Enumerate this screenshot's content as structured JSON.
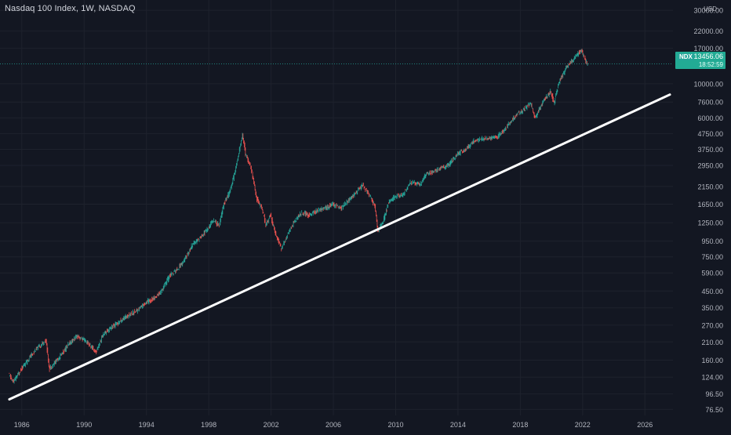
{
  "title": "Nasdaq 100 Index, 1W, NASDAQ",
  "price_tag": {
    "symbol": "NDX",
    "price": "13456.06",
    "countdown": "18:52:59"
  },
  "currency": "USD",
  "colors": {
    "background": "#131722",
    "grid": "#1e222d",
    "axis_text": "#b2b5be",
    "up": "#26a69a",
    "down": "#ef5350",
    "trendline": "#ffffff",
    "price_line": "#26a69a"
  },
  "chart_data": {
    "type": "line",
    "title": "Nasdaq 100 Index, 1W, NASDAQ",
    "y_scale": "log",
    "ylim": [
      70,
      35000
    ],
    "xlim": [
      1984.6,
      2027.8
    ],
    "x_ticks": [
      "1986",
      "1990",
      "1994",
      "1998",
      "2002",
      "2006",
      "2010",
      "2014",
      "2018",
      "2022",
      "2026"
    ],
    "y_ticks": [
      "30000.00",
      "22000.00",
      "17000.00",
      "10000.00",
      "7600.00",
      "6000.00",
      "4750.00",
      "3750.00",
      "2950.00",
      "2150.00",
      "1650.00",
      "1250.00",
      "950.00",
      "750.00",
      "590.00",
      "450.00",
      "350.00",
      "270.00",
      "210.00",
      "160.00",
      "124.00",
      "96.50",
      "76.50"
    ],
    "last_price": 13456.06,
    "series": [
      {
        "x": [
          1985.2,
          1985.5,
          1986.0,
          1986.5,
          1987.0,
          1987.6,
          1987.8,
          1988.5,
          1989.0,
          1989.6,
          1990.2,
          1990.8,
          1991.3,
          1992.0,
          1992.8,
          1993.5,
          1994.0,
          1994.5,
          1995.0,
          1995.5,
          1996.0,
          1996.5,
          1997.0,
          1997.5,
          1998.0,
          1998.3,
          1998.7,
          1999.0,
          1999.4,
          1999.8,
          2000.2,
          2000.4,
          2000.8,
          2001.1,
          2001.5,
          2001.7,
          2002.0,
          2002.4,
          2002.7,
          2003.0,
          2003.5,
          2004.0,
          2004.5,
          2005.0,
          2005.5,
          2006.0,
          2006.5,
          2007.0,
          2007.5,
          2007.9,
          2008.4,
          2008.7,
          2008.9,
          2009.2,
          2009.6,
          2010.0,
          2010.5,
          2011.0,
          2011.6,
          2012.0,
          2012.5,
          2013.0,
          2013.5,
          2014.0,
          2014.5,
          2015.0,
          2015.6,
          2016.1,
          2016.5,
          2017.0,
          2017.5,
          2018.0,
          2018.7,
          2018.98,
          2019.5,
          2020.0,
          2020.2,
          2020.5,
          2020.8,
          2021.0,
          2021.5,
          2021.9,
          2022.0,
          2022.2,
          2022.35
        ],
        "values": [
          130,
          115,
          140,
          165,
          190,
          215,
          140,
          170,
          200,
          230,
          210,
          180,
          240,
          270,
          310,
          340,
          380,
          400,
          450,
          560,
          620,
          720,
          900,
          1000,
          1150,
          1300,
          1200,
          1650,
          2000,
          2900,
          4700,
          3500,
          2700,
          1800,
          1500,
          1200,
          1400,
          1000,
          850,
          1000,
          1250,
          1450,
          1400,
          1500,
          1550,
          1650,
          1550,
          1750,
          1950,
          2200,
          1850,
          1600,
          1100,
          1250,
          1700,
          1850,
          1900,
          2300,
          2200,
          2600,
          2700,
          2850,
          3000,
          3500,
          3700,
          4200,
          4400,
          4400,
          4500,
          5000,
          5800,
          6500,
          7400,
          6000,
          7700,
          8900,
          7500,
          10000,
          11600,
          12800,
          14600,
          16500,
          16200,
          14200,
          13456
        ]
      }
    ],
    "trendline": {
      "x": [
        1985.2,
        2027.6
      ],
      "y": [
        89,
        8500
      ]
    }
  }
}
